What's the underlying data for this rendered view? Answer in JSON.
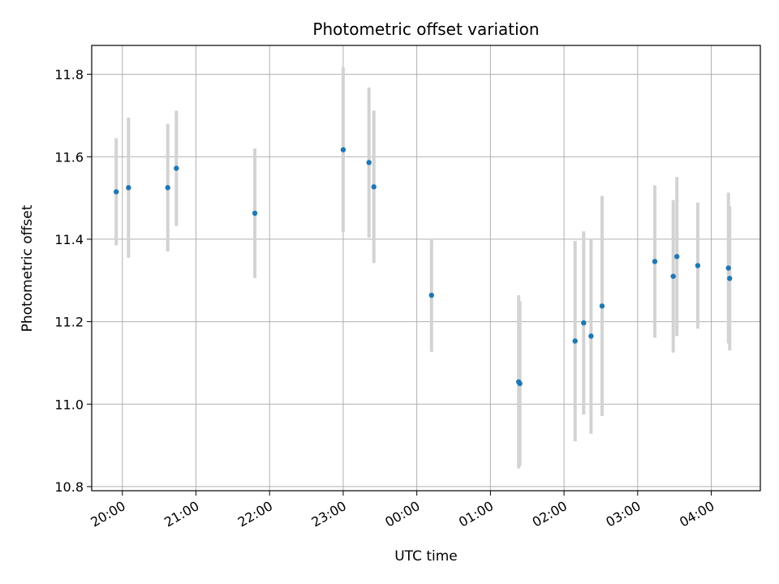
{
  "chart_data": {
    "type": "scatter",
    "title": "Photometric offset variation",
    "xlabel": "UTC time",
    "ylabel": "Photometric offset",
    "x_unit": "UTC time of night (19:35 to 04:40, crossing midnight)",
    "xlim": [
      "19:35",
      "04:40"
    ],
    "ylim": [
      10.79,
      11.87
    ],
    "x_ticks": [
      "20:00",
      "21:00",
      "22:00",
      "23:00",
      "00:00",
      "01:00",
      "02:00",
      "03:00",
      "04:00"
    ],
    "y_ticks": [
      10.8,
      11.0,
      11.2,
      11.4,
      11.6,
      11.8
    ],
    "y_tick_labels": [
      "10.8",
      "11.0",
      "11.2",
      "11.4",
      "11.6",
      "11.8"
    ],
    "grid": true,
    "marker_color": "#1f77b4",
    "errorbar_color": "#d3d3d3",
    "points": [
      {
        "t": "19:55",
        "y": 11.515,
        "err": 0.13
      },
      {
        "t": "20:05",
        "y": 11.525,
        "err": 0.17
      },
      {
        "t": "20:37",
        "y": 11.525,
        "err": 0.155
      },
      {
        "t": "20:44",
        "y": 11.572,
        "err": 0.14
      },
      {
        "t": "21:48",
        "y": 11.463,
        "err": 0.157
      },
      {
        "t": "23:00",
        "y": 11.617,
        "err": 0.2
      },
      {
        "t": "23:21",
        "y": 11.586,
        "err": 0.182
      },
      {
        "t": "23:25",
        "y": 11.527,
        "err": 0.185
      },
      {
        "t": "00:12",
        "y": 11.264,
        "err": 0.137
      },
      {
        "t": "01:23",
        "y": 11.054,
        "err": 0.21
      },
      {
        "t": "01:24",
        "y": 11.05,
        "err": 0.2
      },
      {
        "t": "02:09",
        "y": 11.153,
        "err": 0.243
      },
      {
        "t": "02:16",
        "y": 11.197,
        "err": 0.222
      },
      {
        "t": "02:22",
        "y": 11.165,
        "err": 0.237
      },
      {
        "t": "02:31",
        "y": 11.238,
        "err": 0.267
      },
      {
        "t": "03:14",
        "y": 11.346,
        "err": 0.185
      },
      {
        "t": "03:29",
        "y": 11.31,
        "err": 0.185
      },
      {
        "t": "03:32",
        "y": 11.358,
        "err": 0.193
      },
      {
        "t": "03:49",
        "y": 11.336,
        "err": 0.153
      },
      {
        "t": "04:14",
        "y": 11.33,
        "err": 0.183
      },
      {
        "t": "04:15",
        "y": 11.305,
        "err": 0.175
      }
    ]
  }
}
